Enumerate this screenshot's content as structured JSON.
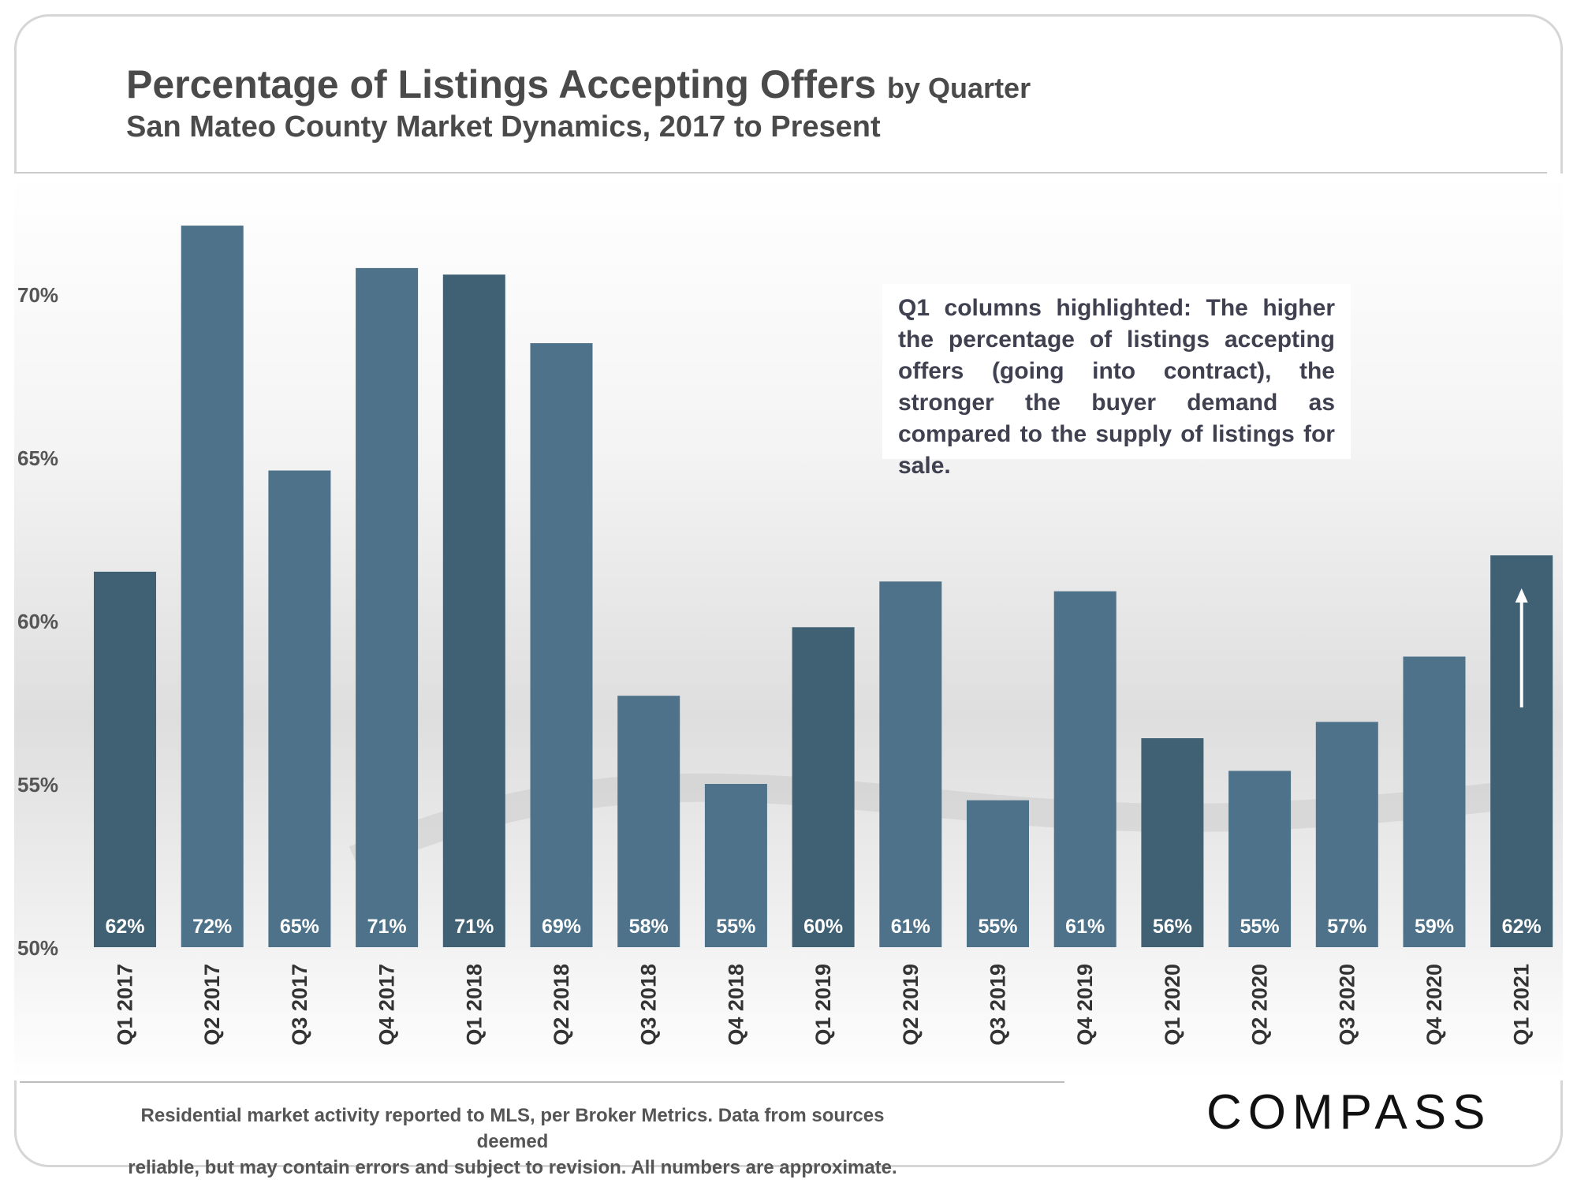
{
  "header": {
    "title_main": "Percentage of Listings Accepting Offers",
    "title_suffix": "by Quarter",
    "subtitle": "San Mateo County Market Dynamics, 2017 to Present"
  },
  "annotation": "Q1 columns highlighted: The higher the percentage of listings accepting offers (going into contract), the stronger the buyer demand as compared to the supply of listings for sale.",
  "footer": {
    "line1": "Residential market activity reported to MLS, per Broker Metrics. Data from sources deemed",
    "line2": "reliable, but may contain errors and subject to revision. All numbers are approximate."
  },
  "brand": {
    "logo_text": "COMPASS"
  },
  "colors": {
    "bar": "#4d7289",
    "bar_q1": "#3f6173",
    "label": "#ffffff",
    "tick": "#555555"
  },
  "chart_data": {
    "type": "bar",
    "title": "Percentage of Listings Accepting Offers by Quarter",
    "subtitle": "San Mateo County Market Dynamics, 2017 to Present",
    "xlabel": "",
    "ylabel": "",
    "ylim": [
      50,
      73.5
    ],
    "yticks": [
      50,
      55,
      60,
      65,
      70
    ],
    "ytick_labels": [
      "50%",
      "55%",
      "60%",
      "65%",
      "70%"
    ],
    "grid": false,
    "categories": [
      "Q1 2017",
      "Q2 2017",
      "Q3 2017",
      "Q4 2017",
      "Q1 2018",
      "Q2 2018",
      "Q3 2018",
      "Q4 2018",
      "Q1 2019",
      "Q2 2019",
      "Q3 2019",
      "Q4 2019",
      "Q1 2020",
      "Q2 2020",
      "Q3 2020",
      "Q4 2020",
      "Q1 2021"
    ],
    "values": [
      61.5,
      72.1,
      64.6,
      70.8,
      70.6,
      68.5,
      57.7,
      55.0,
      59.8,
      61.2,
      54.5,
      60.9,
      56.4,
      55.4,
      56.9,
      58.9,
      62.0
    ],
    "data_labels": [
      "62%",
      "72%",
      "65%",
      "71%",
      "71%",
      "69%",
      "58%",
      "55%",
      "60%",
      "61%",
      "55%",
      "61%",
      "56%",
      "55%",
      "57%",
      "59%",
      "62%"
    ],
    "highlighted": [
      "Q1 2017",
      "Q1 2018",
      "Q1 2019",
      "Q1 2020",
      "Q1 2021"
    ]
  }
}
